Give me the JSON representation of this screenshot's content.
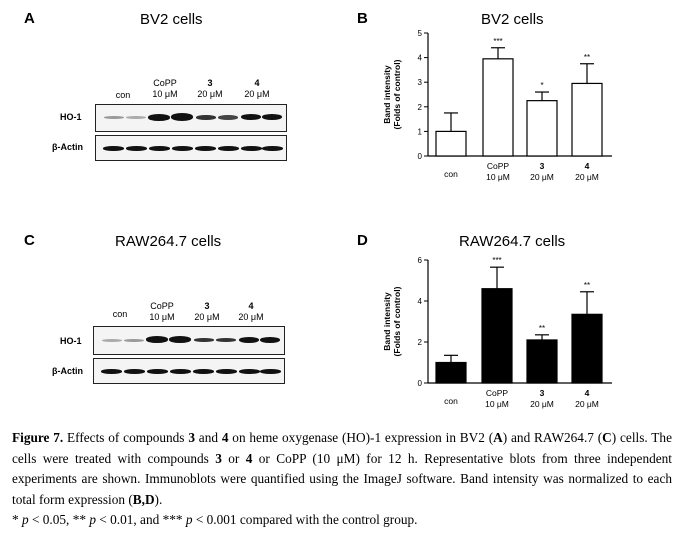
{
  "panels": {
    "A": {
      "letter": "A",
      "title": "BV2 cells"
    },
    "B": {
      "letter": "B",
      "title": "BV2 cells"
    },
    "C": {
      "letter": "C",
      "title": "RAW264.7 cells"
    },
    "D": {
      "letter": "D",
      "title": "RAW264.7 cells"
    }
  },
  "blots": {
    "lanes": [
      {
        "name": "con",
        "dose": ""
      },
      {
        "name": "CoPP",
        "dose": "10 μM"
      },
      {
        "name": "3",
        "dose": "20 μM"
      },
      {
        "name": "4",
        "dose": "20 μM"
      }
    ],
    "rows": [
      "HO-1",
      "β-Actin"
    ]
  },
  "chart_data": [
    {
      "type": "bar",
      "panel": "B",
      "title": "BV2 cells",
      "categories": [
        "con",
        "CoPP 10 μM",
        "3 20 μM",
        "4 20 μM"
      ],
      "category_lines": [
        [
          "con",
          ""
        ],
        [
          "CoPP",
          "10 μM"
        ],
        [
          "3",
          "20 μM"
        ],
        [
          "4",
          "20 μM"
        ]
      ],
      "values": [
        1.0,
        3.95,
        2.25,
        2.95
      ],
      "errors": [
        0.75,
        0.45,
        0.35,
        0.8
      ],
      "significance": [
        "",
        "***",
        "*",
        "**"
      ],
      "ylabel": [
        "Band intensity",
        "(Folds of control)"
      ],
      "ylim": [
        0,
        5
      ],
      "yticks": [
        0,
        1,
        2,
        3,
        4,
        5
      ],
      "bar_color": "#ffffff"
    },
    {
      "type": "bar",
      "panel": "D",
      "title": "RAW264.7 cells",
      "categories": [
        "con",
        "CoPP 10 μM",
        "3 20 μM",
        "4 20 μM"
      ],
      "category_lines": [
        [
          "con",
          ""
        ],
        [
          "CoPP",
          "10 μM"
        ],
        [
          "3",
          "20 μM"
        ],
        [
          "4",
          "20 μM"
        ]
      ],
      "values": [
        1.0,
        4.6,
        2.1,
        3.35
      ],
      "errors": [
        0.35,
        1.05,
        0.25,
        1.1
      ],
      "significance": [
        "",
        "***",
        "**",
        "**"
      ],
      "ylabel": [
        "Band intensity",
        "(Folds of control)"
      ],
      "ylim": [
        0,
        6
      ],
      "yticks": [
        0,
        2,
        4,
        6
      ],
      "bar_color": "#000000"
    }
  ],
  "caption": {
    "label": "Figure 7.",
    "seg1": " Effects of compounds ",
    "c3a": "3",
    "seg2": " and ",
    "c4a": "4",
    "seg3": " on heme oxygenase (HO)-1 expression in BV2 (",
    "pa": "A",
    "seg4": ") and RAW264.7 (",
    "pc": "C",
    "seg5": ") cells. The cells were treated with compounds ",
    "c3b": "3",
    "seg6": " or ",
    "c4b": "4",
    "seg7": " or CoPP (10 μM) for 12 h. Representative blots from three independent experiments are shown. Immunoblots were quantified using the ImageJ software. Band intensity was normalized to each total form expression (",
    "pbd": "B,D",
    "seg8": ").",
    "sig1": "* ",
    "p1": "p",
    "sig2": " < 0.05, ** ",
    "p2": "p",
    "sig3": " < 0.01, and *** ",
    "p3": "p",
    "sig4": " < 0.001 compared with the control group."
  }
}
